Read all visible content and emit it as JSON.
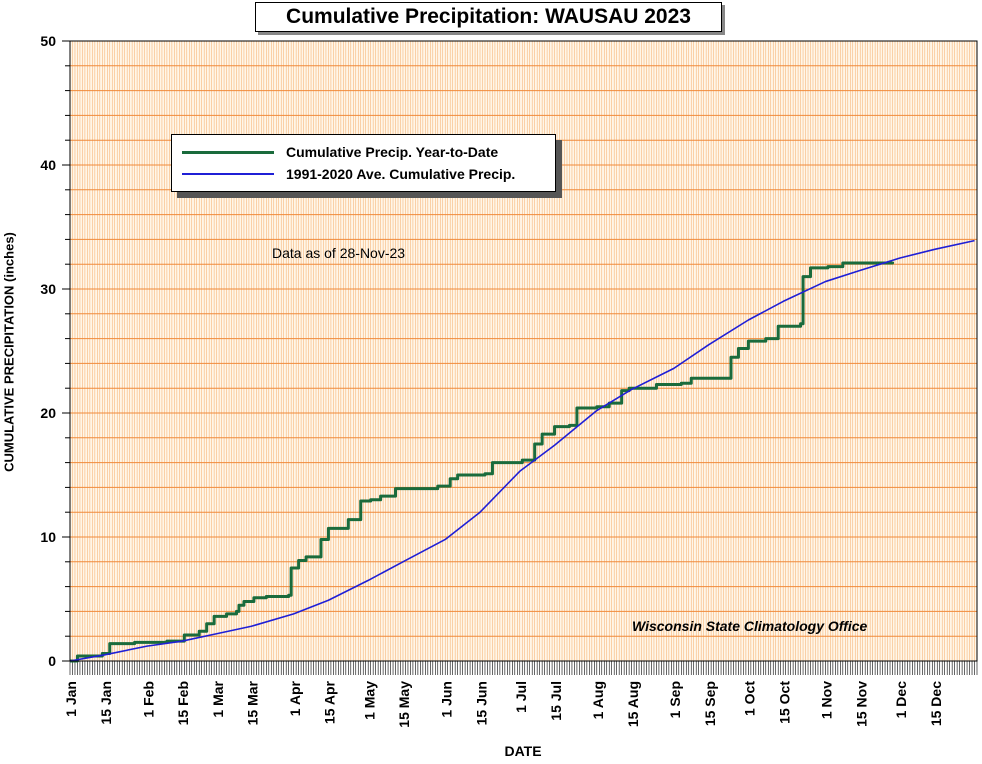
{
  "chart_data": {
    "type": "line",
    "title": "Cumulative Precipitation: WAUSAU 2023",
    "xlabel": "DATE",
    "ylabel": "CUMULATIVE PRECIPITATION (inches)",
    "ylim": [
      0,
      50
    ],
    "yticks": [
      "0",
      "10",
      "20",
      "30",
      "40",
      "50"
    ],
    "xlim": [
      "2023-01-01",
      "2023-12-31"
    ],
    "xticks": [
      {
        "date": "2023-01-01",
        "label": "1 Jan"
      },
      {
        "date": "2023-01-15",
        "label": "15 Jan"
      },
      {
        "date": "2023-02-01",
        "label": "1 Feb"
      },
      {
        "date": "2023-02-15",
        "label": "15 Feb"
      },
      {
        "date": "2023-03-01",
        "label": "1 Mar"
      },
      {
        "date": "2023-03-15",
        "label": "15 Mar"
      },
      {
        "date": "2023-04-01",
        "label": "1 Apr"
      },
      {
        "date": "2023-04-15",
        "label": "15 Apr"
      },
      {
        "date": "2023-05-01",
        "label": "1 May"
      },
      {
        "date": "2023-05-15",
        "label": "15 May"
      },
      {
        "date": "2023-06-01",
        "label": "1 Jun"
      },
      {
        "date": "2023-06-15",
        "label": "15 Jun"
      },
      {
        "date": "2023-07-01",
        "label": "1 Jul"
      },
      {
        "date": "2023-07-15",
        "label": "15 Jul"
      },
      {
        "date": "2023-08-01",
        "label": "1 Aug"
      },
      {
        "date": "2023-08-15",
        "label": "15 Aug"
      },
      {
        "date": "2023-09-01",
        "label": "1 Sep"
      },
      {
        "date": "2023-09-15",
        "label": "15 Sep"
      },
      {
        "date": "2023-10-01",
        "label": "1 Oct"
      },
      {
        "date": "2023-10-15",
        "label": "15 Oct"
      },
      {
        "date": "2023-11-01",
        "label": "1 Nov"
      },
      {
        "date": "2023-11-15",
        "label": "15 Nov"
      },
      {
        "date": "2023-12-01",
        "label": "1 Dec"
      },
      {
        "date": "2023-12-15",
        "label": "15 Dec"
      }
    ],
    "grid": true,
    "legend_position": "upper-left",
    "annotations": {
      "as_of": "Data as of 28-Nov-23",
      "credit": "Wisconsin State Climatology Office"
    },
    "series": [
      {
        "name": "Cumulative Precip. Year-to-Date",
        "color": "#1a6b3c",
        "step": true,
        "points": [
          [
            "2023-01-01",
            0.0
          ],
          [
            "2023-01-04",
            0.4
          ],
          [
            "2023-01-14",
            0.6
          ],
          [
            "2023-01-17",
            1.4
          ],
          [
            "2023-01-27",
            1.5
          ],
          [
            "2023-02-09",
            1.6
          ],
          [
            "2023-02-16",
            2.1
          ],
          [
            "2023-02-22",
            2.4
          ],
          [
            "2023-02-25",
            3.0
          ],
          [
            "2023-02-28",
            3.6
          ],
          [
            "2023-03-05",
            3.8
          ],
          [
            "2023-03-09",
            4.0
          ],
          [
            "2023-03-10",
            4.5
          ],
          [
            "2023-03-12",
            4.8
          ],
          [
            "2023-03-16",
            5.1
          ],
          [
            "2023-03-21",
            5.2
          ],
          [
            "2023-03-30",
            5.3
          ],
          [
            "2023-03-31",
            7.5
          ],
          [
            "2023-04-03",
            8.1
          ],
          [
            "2023-04-06",
            8.4
          ],
          [
            "2023-04-12",
            9.8
          ],
          [
            "2023-04-15",
            10.7
          ],
          [
            "2023-04-23",
            11.4
          ],
          [
            "2023-04-28",
            12.9
          ],
          [
            "2023-05-02",
            13.0
          ],
          [
            "2023-05-06",
            13.3
          ],
          [
            "2023-05-12",
            13.9
          ],
          [
            "2023-05-29",
            14.1
          ],
          [
            "2023-06-03",
            14.7
          ],
          [
            "2023-06-06",
            15.0
          ],
          [
            "2023-06-17",
            15.1
          ],
          [
            "2023-06-20",
            16.0
          ],
          [
            "2023-07-02",
            16.2
          ],
          [
            "2023-07-07",
            17.5
          ],
          [
            "2023-07-10",
            18.3
          ],
          [
            "2023-07-15",
            18.9
          ],
          [
            "2023-07-21",
            19.0
          ],
          [
            "2023-07-24",
            20.4
          ],
          [
            "2023-08-01",
            20.5
          ],
          [
            "2023-08-06",
            20.8
          ],
          [
            "2023-08-11",
            21.8
          ],
          [
            "2023-08-14",
            22.0
          ],
          [
            "2023-08-25",
            22.3
          ],
          [
            "2023-09-04",
            22.4
          ],
          [
            "2023-09-08",
            22.8
          ],
          [
            "2023-09-24",
            24.5
          ],
          [
            "2023-09-27",
            25.2
          ],
          [
            "2023-10-01",
            25.8
          ],
          [
            "2023-10-08",
            26.0
          ],
          [
            "2023-10-13",
            27.0
          ],
          [
            "2023-10-22",
            27.2
          ],
          [
            "2023-10-23",
            31.0
          ],
          [
            "2023-10-26",
            31.7
          ],
          [
            "2023-11-02",
            31.8
          ],
          [
            "2023-11-08",
            32.1
          ],
          [
            "2023-11-28",
            32.2
          ]
        ]
      },
      {
        "name": "1991-2020 Ave. Cumulative Precip.",
        "color": "#1f1fd6",
        "step": false,
        "points": [
          [
            "2023-01-01",
            0.0
          ],
          [
            "2023-01-15",
            0.5
          ],
          [
            "2023-02-01",
            1.2
          ],
          [
            "2023-02-15",
            1.6
          ],
          [
            "2023-03-01",
            2.2
          ],
          [
            "2023-03-15",
            2.8
          ],
          [
            "2023-04-01",
            3.8
          ],
          [
            "2023-04-15",
            4.9
          ],
          [
            "2023-05-01",
            6.5
          ],
          [
            "2023-05-15",
            8.0
          ],
          [
            "2023-06-01",
            9.8
          ],
          [
            "2023-06-15",
            12.0
          ],
          [
            "2023-07-01",
            15.3
          ],
          [
            "2023-07-15",
            17.4
          ],
          [
            "2023-08-01",
            20.2
          ],
          [
            "2023-08-15",
            21.9
          ],
          [
            "2023-09-01",
            23.6
          ],
          [
            "2023-09-15",
            25.5
          ],
          [
            "2023-10-01",
            27.5
          ],
          [
            "2023-10-15",
            29.0
          ],
          [
            "2023-11-01",
            30.6
          ],
          [
            "2023-11-15",
            31.5
          ],
          [
            "2023-12-01",
            32.5
          ],
          [
            "2023-12-15",
            33.2
          ],
          [
            "2023-12-31",
            33.9
          ]
        ]
      }
    ]
  }
}
